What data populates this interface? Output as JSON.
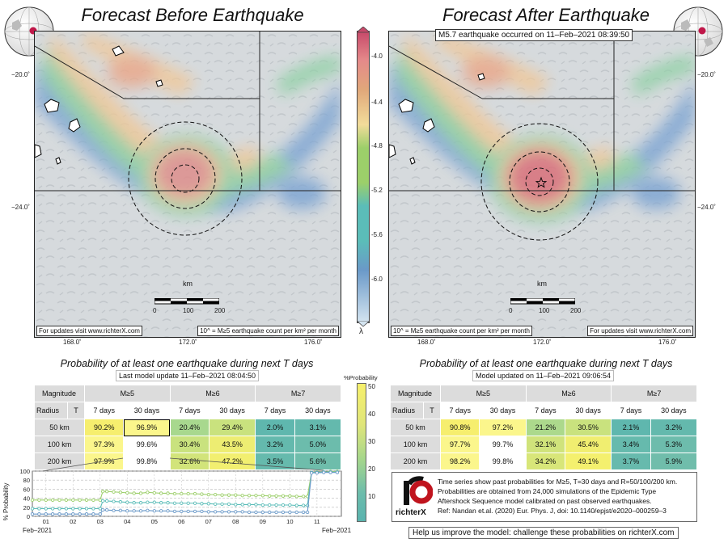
{
  "maps": {
    "left_title": "Forecast Before Earthquake",
    "right_title": "Forecast After Earthquake",
    "eq_banner": "M5.7 earthquake occurred on 11–Feb–2021 08:39:50",
    "footer_url": "For updates visit www.richterX.com",
    "footer_url_right": "For updates visit www.richterX.com",
    "footer_count": "10^ = M≥5 earthquake count per km² per month",
    "footer_count_right": "10^ = M≥5 earthquake count per km² per month",
    "lat_labels": [
      "−20.0˚",
      "−24.0˚"
    ],
    "lon_labels": [
      "168.0˚",
      "172.0˚",
      "176.0˚"
    ],
    "scale": {
      "unit": "km",
      "ticks": [
        "0",
        "100",
        "200"
      ]
    }
  },
  "colorbar": {
    "ticks": [
      "-4.0",
      "-4.4",
      "-4.8",
      "-5.2",
      "-5.6",
      "-6.0"
    ],
    "label": "λ",
    "colors": [
      "#c7496a",
      "#e0a77a",
      "#f2dc9a",
      "#9ccf6a",
      "#5bbdb8",
      "#6a99c8"
    ]
  },
  "prob_colorbar": {
    "label": "%Probability",
    "ticks": [
      "50",
      "40",
      "30",
      "20",
      "10"
    ]
  },
  "left_table": {
    "title": "Probability of at least one earthquake during next T days",
    "subtitle": "Last model update 11–Feb–2021 08:04:50",
    "corner_top": "Magnitude",
    "corner_radius": "Radius",
    "corner_t": "T",
    "magnitudes": [
      "M≥5",
      "M≥6",
      "M≥7"
    ],
    "periods": [
      "7 days",
      "30 days",
      "7 days",
      "30 days",
      "7 days",
      "30 days"
    ],
    "rows": [
      {
        "radius": "50 km",
        "values": [
          "90.2%",
          "96.9%",
          "20.4%",
          "29.4%",
          "2.0%",
          "3.1%"
        ],
        "colors": [
          "#f6ee6e",
          "#fbf68c",
          "#a8d88e",
          "#c9e27e",
          "#5fb7ae",
          "#64b9ad"
        ]
      },
      {
        "radius": "100 km",
        "values": [
          "97.3%",
          "99.6%",
          "30.4%",
          "43.5%",
          "3.2%",
          "5.0%"
        ],
        "colors": [
          "#fbf68c",
          "#ffffff",
          "#c9e27e",
          "#eded72",
          "#64b9ad",
          "#6cbcac"
        ]
      },
      {
        "radius": "200 km",
        "values": [
          "97.9%",
          "99.8%",
          "32.6%",
          "47.2%",
          "3.5%",
          "5.6%"
        ],
        "colors": [
          "#fbf68c",
          "#ffffff",
          "#d2e47a",
          "#f2ef70",
          "#66baad",
          "#6ebdab"
        ]
      }
    ]
  },
  "right_table": {
    "title": "Probability of at least one earthquake during next T days",
    "subtitle": "Model updated on 11–Feb–2021 09:06:54",
    "corner_top": "Magnitude",
    "corner_radius": "Radius",
    "corner_t": "T",
    "magnitudes": [
      "M≥5",
      "M≥6",
      "M≥7"
    ],
    "periods": [
      "7 days",
      "30 days",
      "7 days",
      "30 days",
      "7 days",
      "30 days"
    ],
    "rows": [
      {
        "radius": "50 km",
        "values": [
          "90.8%",
          "97.2%",
          "21.2%",
          "30.5%",
          "2.1%",
          "3.2%"
        ],
        "colors": [
          "#f6ee6e",
          "#fbf68c",
          "#acd98c",
          "#c9e27e",
          "#5fb7ae",
          "#64b9ad"
        ]
      },
      {
        "radius": "100 km",
        "values": [
          "97.7%",
          "99.7%",
          "32.1%",
          "45.4%",
          "3.4%",
          "5.3%"
        ],
        "colors": [
          "#fbf68c",
          "#ffffff",
          "#d0e37b",
          "#f0ee70",
          "#66baad",
          "#6dbcac"
        ]
      },
      {
        "radius": "200 km",
        "values": [
          "98.2%",
          "99.8%",
          "34.2%",
          "49.1%",
          "3.7%",
          "5.9%"
        ],
        "colors": [
          "#fbf68c",
          "#ffffff",
          "#d8e679",
          "#f4f06e",
          "#67baad",
          "#70bdab"
        ]
      }
    ]
  },
  "note": {
    "logo_text": "richterX",
    "lines": [
      "Time series show past probabilities for M≥5, T=30 days and R=50/100/200 km.",
      "Probabilities are obtained from 24,000 simulations of the Epidemic Type",
      "Aftershock Sequence model calibrated on past observed earthquakes.",
      "Ref: Nandan et.al. (2020) Eur. Phys. J, doi: 10.1140/epjst/e2020–000259–3"
    ]
  },
  "help_text": "Help us improve the model: challenge these probabilities on richterX.com",
  "chart_data": {
    "type": "line",
    "ylabel": "% Probability",
    "ylim": [
      0,
      100
    ],
    "yticks": [
      0,
      20,
      40,
      60,
      80,
      100
    ],
    "xlim": [
      0,
      11.4
    ],
    "x_tick_labels": [
      "01",
      "02",
      "03",
      "04",
      "05",
      "06",
      "07",
      "08",
      "09",
      "10",
      "11"
    ],
    "x_range_labels": [
      "Feb–2021",
      "Feb–2021"
    ],
    "grid": true,
    "x": [
      0,
      0.25,
      0.5,
      0.75,
      1,
      1.25,
      1.5,
      1.75,
      2,
      2.25,
      2.5,
      2.6,
      2.75,
      3,
      3.25,
      3.5,
      3.75,
      4,
      4.25,
      4.5,
      4.75,
      5,
      5.25,
      5.5,
      5.75,
      6,
      6.25,
      6.5,
      6.75,
      7,
      7.25,
      7.5,
      7.75,
      8,
      8.25,
      8.5,
      8.75,
      9,
      9.25,
      9.5,
      9.75,
      10,
      10.15,
      10.3,
      10.5,
      10.75,
      11,
      11.25
    ],
    "series": [
      {
        "name": "",
        "color": "#9ccf6a",
        "values": [
          36,
          36,
          36,
          36,
          36,
          36,
          36,
          36,
          36,
          36,
          36,
          55,
          55,
          54,
          53,
          52,
          51,
          51,
          53,
          52,
          51,
          51,
          50,
          50,
          50,
          50,
          49,
          48,
          48,
          47,
          47,
          47,
          46,
          46,
          46,
          46,
          45,
          45,
          45,
          45,
          44,
          44,
          44,
          97,
          98,
          98,
          99,
          99
        ]
      },
      {
        "name": "",
        "color": "#5bbdb8",
        "values": [
          17,
          17,
          17,
          17,
          17,
          17,
          17,
          17,
          17,
          17,
          17,
          34,
          34,
          33,
          32,
          31,
          30,
          30,
          31,
          31,
          30,
          30,
          29,
          29,
          29,
          29,
          28,
          28,
          27,
          27,
          27,
          26,
          26,
          26,
          26,
          25,
          25,
          25,
          25,
          25,
          24,
          24,
          24,
          97,
          97,
          98,
          98,
          98
        ]
      },
      {
        "name": "",
        "color": "#6a99c8",
        "values": [
          5,
          5,
          5,
          5,
          5,
          5,
          5,
          5,
          5,
          5,
          5,
          14,
          14,
          13,
          13,
          12,
          12,
          12,
          13,
          12,
          12,
          12,
          11,
          11,
          11,
          11,
          11,
          10,
          10,
          10,
          10,
          10,
          10,
          9,
          9,
          9,
          9,
          9,
          9,
          9,
          9,
          9,
          9,
          96,
          96,
          97,
          97,
          97
        ]
      }
    ]
  }
}
